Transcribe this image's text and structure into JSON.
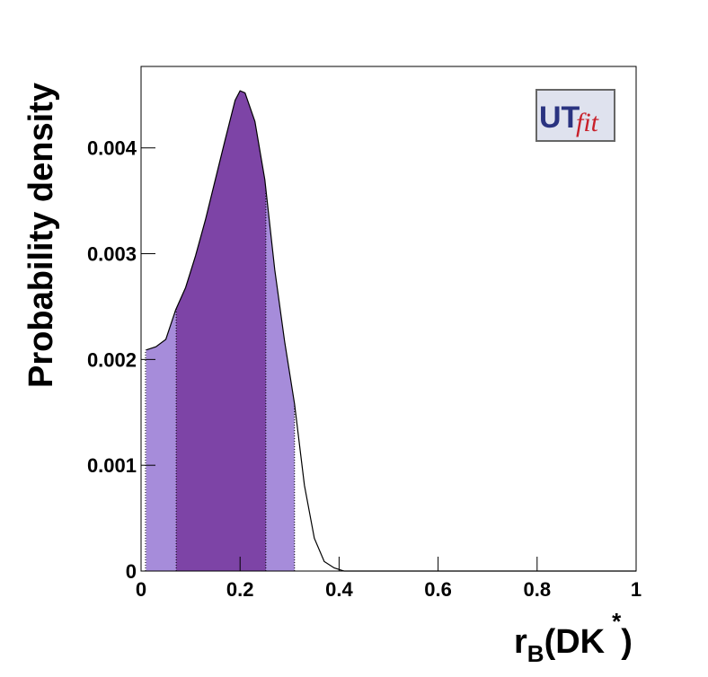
{
  "chart_data": {
    "type": "density",
    "ylabel": "Probability density",
    "xlabel": {
      "main": "r",
      "sub": "B",
      "open": "(DK",
      "sup": "*",
      "close": ")"
    },
    "logo": {
      "first": "UT",
      "second": "fit"
    },
    "x": [
      0.01,
      0.03,
      0.05,
      0.07,
      0.09,
      0.11,
      0.13,
      0.15,
      0.17,
      0.19,
      0.2,
      0.21,
      0.23,
      0.25,
      0.27,
      0.29,
      0.31,
      0.33,
      0.35,
      0.37,
      0.39,
      0.41,
      1
    ],
    "values": [
      0.00209,
      0.00212,
      0.00219,
      0.00247,
      0.00268,
      0.00298,
      0.00332,
      0.0037,
      0.00408,
      0.00445,
      0.00454,
      0.00452,
      0.00425,
      0.0037,
      0.00285,
      0.00217,
      0.00158,
      0.00081,
      0.00031,
      9e-05,
      3e-05,
      0,
      0
    ],
    "line_color": "#000000",
    "intervals": [
      {
        "lo": 0.009,
        "hi": 0.31,
        "color": "#a68cda"
      },
      {
        "lo": 0.071,
        "hi": 0.252,
        "color": "#7d44a6"
      }
    ],
    "xlim": [
      0,
      1
    ],
    "xticks": [
      0,
      0.2,
      0.4,
      0.6,
      0.8,
      1
    ],
    "ylim": [
      0,
      0.00477
    ],
    "yticks": [
      0,
      0.001,
      0.002,
      0.003,
      0.004
    ]
  }
}
